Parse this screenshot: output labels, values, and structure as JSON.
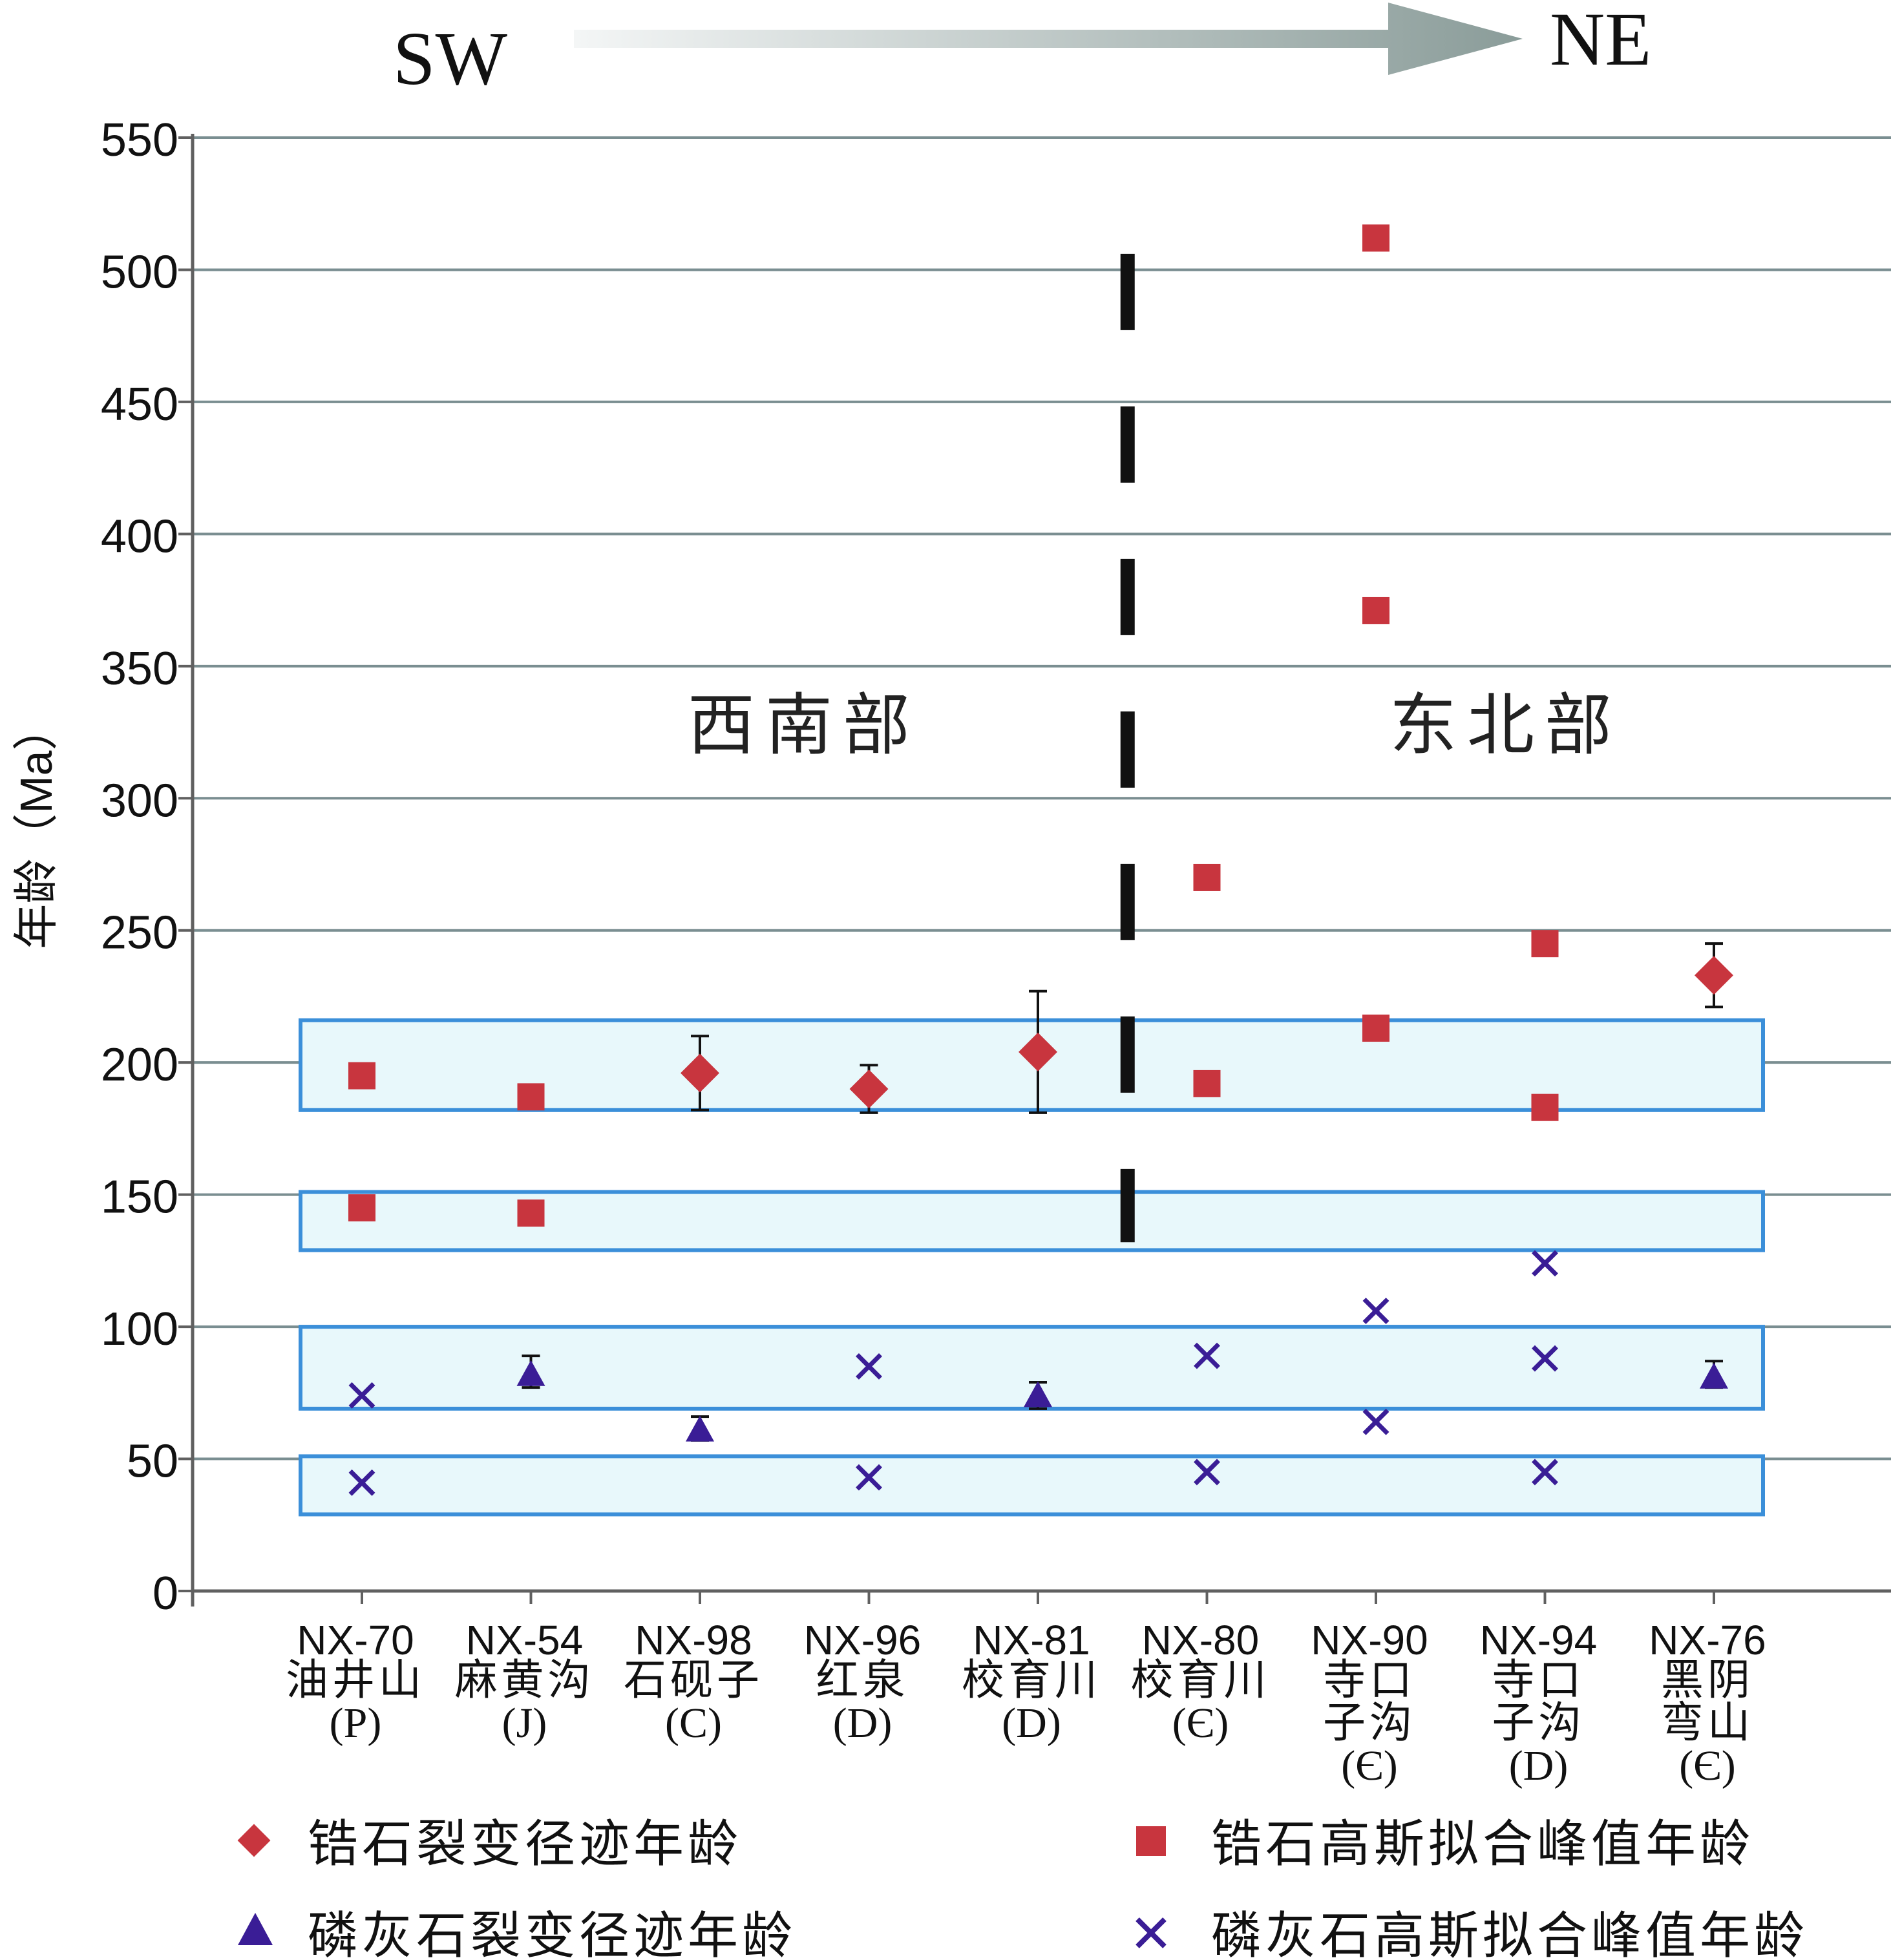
{
  "header": {
    "left_label": "SW",
    "right_label": "NE"
  },
  "chart_data": {
    "type": "scatter",
    "title": "",
    "ylabel": "年龄（Ma）",
    "ylim": [
      0,
      550
    ],
    "yticks": [
      0,
      50,
      100,
      150,
      200,
      250,
      300,
      350,
      400,
      450,
      500,
      550
    ],
    "grid": true,
    "region_labels": {
      "southwest": "西南部",
      "northeast": "东北部"
    },
    "categories": [
      {
        "code": "NX-70",
        "name": "油井山",
        "strat": "(P)"
      },
      {
        "code": "NX-54",
        "name": "麻黄沟",
        "strat": "(J)"
      },
      {
        "code": "NX-98",
        "name": "石砚子",
        "strat": "(C)"
      },
      {
        "code": "NX-96",
        "name": "红泉",
        "strat": "(D)"
      },
      {
        "code": "NX-81",
        "name": "校育川",
        "strat": "(D)"
      },
      {
        "code": "NX-80",
        "name": "校育川",
        "strat": "(Є)"
      },
      {
        "code": "NX-90",
        "name": "寺口子沟",
        "strat": "(Є)"
      },
      {
        "code": "NX-94",
        "name": "寺口子沟",
        "strat": "(D)"
      },
      {
        "code": "NX-76",
        "name": "黑阴弯山",
        "strat": "(Є)"
      }
    ],
    "category_name_lines": [
      [
        "油井山"
      ],
      [
        "麻黄沟"
      ],
      [
        "石砚子"
      ],
      [
        "红泉"
      ],
      [
        "校育川"
      ],
      [
        "校育川"
      ],
      [
        "寺口",
        "子沟"
      ],
      [
        "寺口",
        "子沟"
      ],
      [
        "黑阴",
        "弯山"
      ]
    ],
    "highlight_bands": [
      {
        "ymin": 182,
        "ymax": 216
      },
      {
        "ymin": 129,
        "ymax": 151
      },
      {
        "ymin": 69,
        "ymax": 100
      },
      {
        "ymin": 29,
        "ymax": 51
      }
    ],
    "divider_between": [
      "NX-81",
      "NX-80"
    ],
    "divider_range": [
      132,
      506
    ],
    "series": [
      {
        "name": "锆石裂变径迹年龄",
        "marker": "diamond",
        "color": "#c8353e",
        "points": [
          {
            "cat": 2,
            "y": 196,
            "err_low": 182,
            "err_high": 210
          },
          {
            "cat": 3,
            "y": 190,
            "err_low": 181,
            "err_high": 199
          },
          {
            "cat": 4,
            "y": 204,
            "err_low": 181,
            "err_high": 227
          },
          {
            "cat": 8,
            "y": 233,
            "err_low": 221,
            "err_high": 245
          }
        ]
      },
      {
        "name": "锆石高斯拟合峰值年龄",
        "marker": "square",
        "color": "#c8353e",
        "points": [
          {
            "cat": 0,
            "y": 195
          },
          {
            "cat": 0,
            "y": 145
          },
          {
            "cat": 1,
            "y": 187
          },
          {
            "cat": 1,
            "y": 143
          },
          {
            "cat": 5,
            "y": 270
          },
          {
            "cat": 5,
            "y": 192
          },
          {
            "cat": 6,
            "y": 512
          },
          {
            "cat": 6,
            "y": 371
          },
          {
            "cat": 6,
            "y": 213
          },
          {
            "cat": 7,
            "y": 245
          },
          {
            "cat": 7,
            "y": 183
          }
        ]
      },
      {
        "name": "磷灰石裂变径迹年龄",
        "marker": "triangle",
        "color": "#3a1d96",
        "points": [
          {
            "cat": 1,
            "y": 82,
            "err_low": 77,
            "err_high": 89
          },
          {
            "cat": 2,
            "y": 61,
            "err_low": 57,
            "err_high": 66
          },
          {
            "cat": 4,
            "y": 74,
            "err_low": 69,
            "err_high": 79
          },
          {
            "cat": 8,
            "y": 81,
            "err_low": 77,
            "err_high": 87
          }
        ]
      },
      {
        "name": "磷灰石高斯拟合峰值年龄",
        "marker": "x",
        "color": "#3a1d96",
        "points": [
          {
            "cat": 0,
            "y": 74
          },
          {
            "cat": 0,
            "y": 41
          },
          {
            "cat": 3,
            "y": 85
          },
          {
            "cat": 3,
            "y": 43
          },
          {
            "cat": 5,
            "y": 89
          },
          {
            "cat": 5,
            "y": 45
          },
          {
            "cat": 6,
            "y": 106
          },
          {
            "cat": 6,
            "y": 64
          },
          {
            "cat": 7,
            "y": 124
          },
          {
            "cat": 7,
            "y": 88
          },
          {
            "cat": 7,
            "y": 45
          }
        ]
      }
    ],
    "legend": [
      "锆石裂变径迹年龄",
      "锆石高斯拟合峰值年龄",
      "磷灰石裂变径迹年龄",
      "磷灰石高斯拟合峰值年龄"
    ],
    "legend_position": "bottom"
  },
  "colors": {
    "grid": "#7a8e91",
    "axis": "#606060",
    "band_fill": "#e8f8fb",
    "band_stroke": "#3b8fd9",
    "red": "#c8353e",
    "purple": "#3a1d96",
    "arrow_start": "#f4f6f6",
    "arrow_end": "#8a9c99"
  }
}
